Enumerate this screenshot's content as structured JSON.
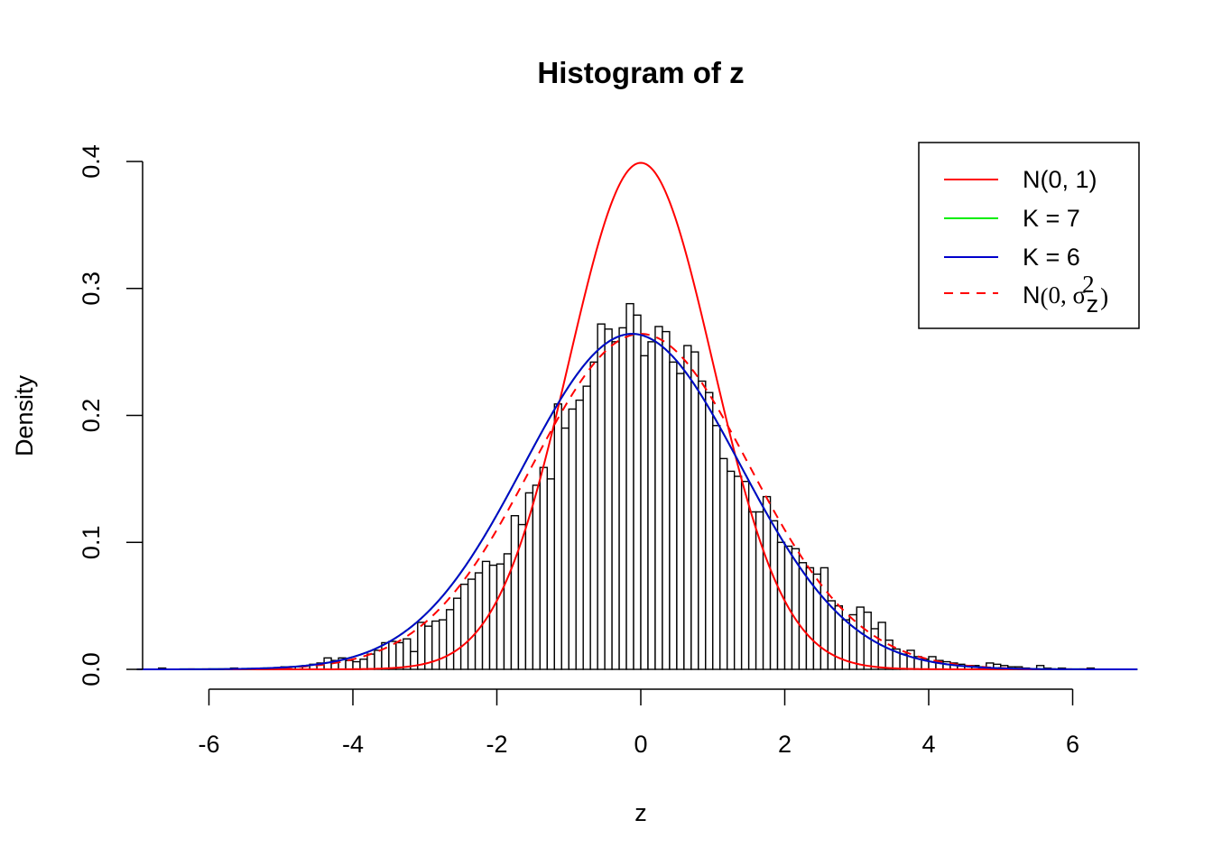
{
  "chart_data": {
    "type": "bar",
    "title": "Histogram of z",
    "xlabel": "z",
    "ylabel": "Density",
    "xlim": [
      -7.0,
      6.9
    ],
    "ylim": [
      0,
      0.4
    ],
    "x_ticks": [
      "-6",
      "-4",
      "-2",
      "0",
      "2",
      "4",
      "6"
    ],
    "x_tick_values": [
      -6,
      -4,
      -2,
      0,
      2,
      4,
      6
    ],
    "y_ticks": [
      "0.0",
      "0.1",
      "0.2",
      "0.3",
      "0.4"
    ],
    "y_tick_values": [
      0,
      0.1,
      0.2,
      0.3,
      0.4
    ],
    "grid": false,
    "legend_position": "top-right",
    "bin_width": 0.1,
    "histogram": {
      "bin_start": [
        -6.7,
        -5.7,
        -5.0,
        -4.9,
        -4.8,
        -4.7,
        -4.6,
        -4.5,
        -4.4,
        -4.3,
        -4.2,
        -4.1,
        -4.0,
        -3.9,
        -3.8,
        -3.7,
        -3.6,
        -3.5,
        -3.4,
        -3.3,
        -3.2,
        -3.1,
        -3.0,
        -2.9,
        -2.8,
        -2.7,
        -2.6,
        -2.5,
        -2.4,
        -2.3,
        -2.2,
        -2.1,
        -2.0,
        -1.9,
        -1.8,
        -1.7,
        -1.6,
        -1.5,
        -1.4,
        -1.3,
        -1.2,
        -1.1,
        -1.0,
        -0.9,
        -0.8,
        -0.7,
        -0.6,
        -0.5,
        -0.4,
        -0.3,
        -0.2,
        -0.1,
        0.0,
        0.1,
        0.2,
        0.3,
        0.4,
        0.5,
        0.6,
        0.7,
        0.8,
        0.9,
        1.0,
        1.1,
        1.2,
        1.3,
        1.4,
        1.5,
        1.6,
        1.7,
        1.8,
        1.9,
        2.0,
        2.1,
        2.2,
        2.3,
        2.4,
        2.5,
        2.6,
        2.7,
        2.8,
        2.9,
        3.0,
        3.1,
        3.2,
        3.3,
        3.4,
        3.5,
        3.6,
        3.7,
        3.8,
        3.9,
        4.0,
        4.1,
        4.2,
        4.3,
        4.4,
        4.5,
        4.6,
        4.7,
        4.8,
        4.9,
        5.0,
        5.1,
        5.2,
        5.3,
        5.5,
        5.6,
        5.8,
        6.2
      ],
      "density": [
        0.001,
        0.001,
        0.002,
        0.002,
        0.002,
        0.003,
        0.004,
        0.005,
        0.009,
        0.007,
        0.009,
        0.007,
        0.006,
        0.008,
        0.012,
        0.015,
        0.021,
        0.022,
        0.021,
        0.024,
        0.014,
        0.037,
        0.034,
        0.038,
        0.039,
        0.047,
        0.056,
        0.067,
        0.071,
        0.076,
        0.085,
        0.082,
        0.083,
        0.091,
        0.121,
        0.114,
        0.139,
        0.145,
        0.159,
        0.15,
        0.209,
        0.19,
        0.205,
        0.212,
        0.223,
        0.242,
        0.272,
        0.268,
        0.258,
        0.269,
        0.288,
        0.279,
        0.247,
        0.258,
        0.27,
        0.266,
        0.242,
        0.233,
        0.255,
        0.25,
        0.227,
        0.218,
        0.192,
        0.166,
        0.156,
        0.152,
        0.148,
        0.124,
        0.124,
        0.136,
        0.117,
        0.1,
        0.097,
        0.095,
        0.084,
        0.08,
        0.075,
        0.08,
        0.054,
        0.05,
        0.039,
        0.043,
        0.049,
        0.045,
        0.032,
        0.037,
        0.023,
        0.016,
        0.012,
        0.015,
        0.01,
        0.008,
        0.01,
        0.007,
        0.006,
        0.005,
        0.004,
        0.003,
        0.003,
        0.002,
        0.005,
        0.004,
        0.003,
        0.002,
        0.002,
        0.001,
        0.003,
        0.001,
        0.001,
        0.001
      ]
    },
    "series": [
      {
        "name": "N(0, 1)",
        "type": "line",
        "dist": "normal",
        "mean": 0,
        "sd": 1,
        "color": "#ff0000",
        "dash": "solid"
      },
      {
        "name": "K = 7",
        "type": "line",
        "dist": "normal",
        "mean": -0.12,
        "sd": 1.51,
        "color": "#00ee00",
        "dash": "solid"
      },
      {
        "name": "K = 6",
        "type": "line",
        "dist": "normal",
        "mean": -0.12,
        "sd": 1.51,
        "color": "#0000cc",
        "dash": "solid"
      },
      {
        "name": "N(0, σz²)",
        "type": "line",
        "dist": "normal",
        "mean": 0,
        "sd": 1.51,
        "color": "#ff0000",
        "dash": "dashed"
      }
    ]
  },
  "legend": {
    "items": [
      {
        "label": "N(0, 1)",
        "color": "#ff0000",
        "dash": "solid"
      },
      {
        "label": "K = 7",
        "color": "#00ee00",
        "dash": "solid"
      },
      {
        "label": "K = 6",
        "color": "#0000cc",
        "dash": "solid"
      },
      {
        "label_prefix": "N",
        "label_open": "(",
        "label_body": "0, σ",
        "label_sub": "z",
        "label_sup": "2",
        "label_close": ")",
        "color": "#ff0000",
        "dash": "dashed"
      }
    ]
  }
}
